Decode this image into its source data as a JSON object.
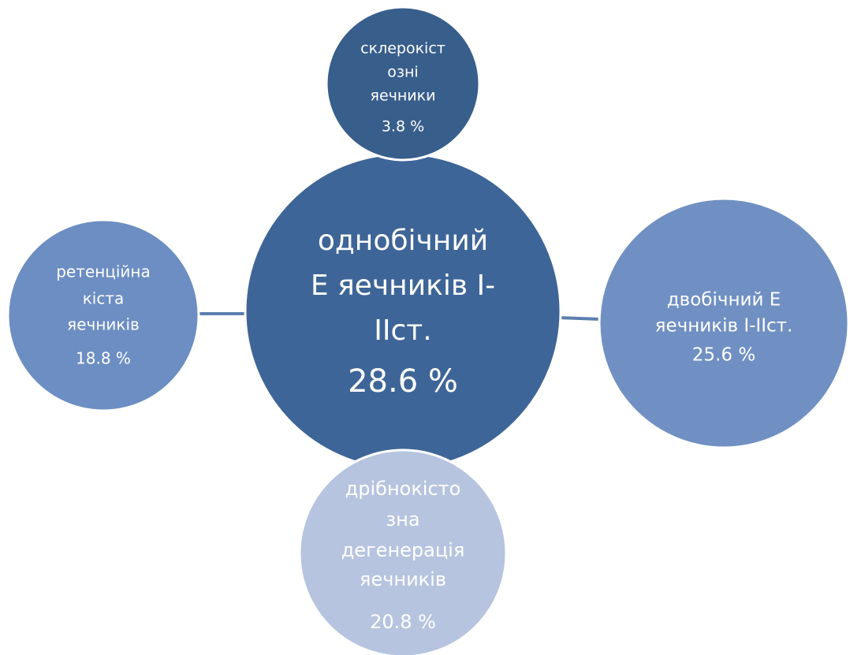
{
  "nodes": [
    {
      "lines": [
        "однобічний",
        "Е яечників І-",
        "ІІст."
      ],
      "value": "28.6 %"
    },
    {
      "lines": [
        "склерокіст",
        "озні",
        "яечники"
      ],
      "value": "3.8 %"
    },
    {
      "lines": [
        "ретенційна",
        "кіста",
        "яечників"
      ],
      "value": "18.8 %"
    },
    {
      "lines": [
        "двобічний Е",
        "яечників І-ІІст."
      ],
      "value": "25.6 %"
    },
    {
      "lines": [
        "дрібнокісто",
        "зна",
        "дегенерація",
        "яечників"
      ],
      "value": "20.8 %"
    }
  ]
}
